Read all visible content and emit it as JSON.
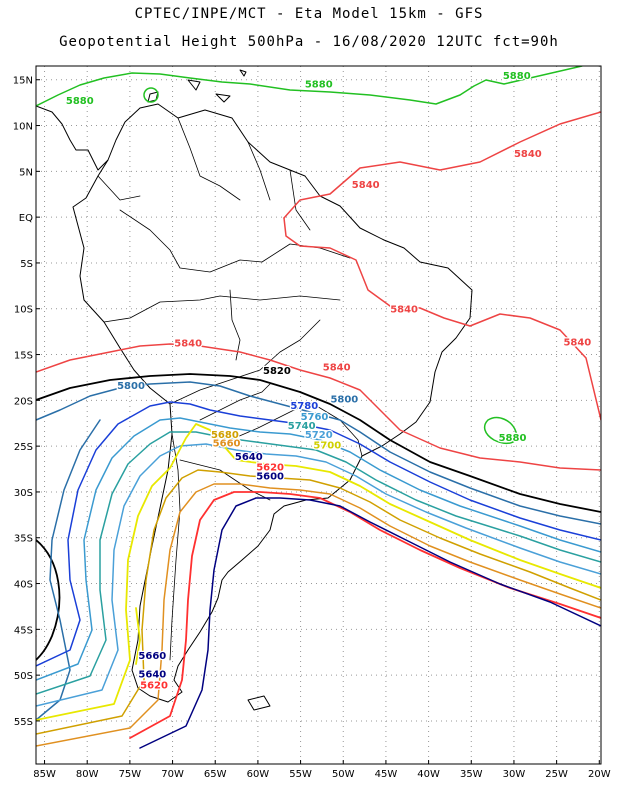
{
  "header": {
    "title_line1": "CPTEC/INPE/MCT -  Eta Model 15km - GFS",
    "title_line2": "Geopotential Height 500hPa - 16/08/2020 12UTC fct=90h"
  },
  "axes": {
    "lat_labels": [
      "15N",
      "10N",
      "5N",
      "EQ",
      "5S",
      "10S",
      "15S",
      "20S",
      "25S",
      "30S",
      "35S",
      "40S",
      "45S",
      "50S",
      "55S"
    ],
    "lat_values": [
      15,
      10,
      5,
      0,
      -5,
      -10,
      -15,
      -20,
      -25,
      -30,
      -35,
      -40,
      -45,
      -50,
      -55
    ],
    "lon_labels": [
      "85W",
      "80W",
      "75W",
      "70W",
      "65W",
      "60W",
      "55W",
      "50W",
      "45W",
      "40W",
      "35W",
      "30W",
      "25W",
      "20W"
    ],
    "lon_values": [
      -85,
      -80,
      -75,
      -70,
      -65,
      -60,
      -55,
      -50,
      -45,
      -40,
      -35,
      -30,
      -25,
      -20
    ],
    "lon_range": [
      -86,
      -19.8
    ],
    "lat_range": [
      -59.7,
      16.5
    ],
    "grid": "dotted"
  },
  "colors": {
    "c5880": "#22c022",
    "c5840": "#ee4444",
    "c5820": "#000000",
    "c5800": "#2a6fa8",
    "c5780": "#1a3fd8",
    "c5760": "#3a9ad0",
    "c5740": "#2aa0a0",
    "c5720": "#4aa0d8",
    "c5700": "#e8e800",
    "c5680": "#d0a000",
    "c5660": "#e09020",
    "c5640": "#ff3030",
    "c5620": "#000080",
    "coast": "#000000"
  },
  "contour_labels": [
    {
      "text": "5880",
      "lon": -82.5,
      "lat": 12.8,
      "color": "#22c022"
    },
    {
      "text": "5880",
      "lon": -54.5,
      "lat": 14.6,
      "color": "#22c022"
    },
    {
      "text": "5880",
      "lon": -31.3,
      "lat": 15.5,
      "color": "#22c022"
    },
    {
      "text": "5880",
      "lon": -31.8,
      "lat": -24.0,
      "color": "#22c022"
    },
    {
      "text": "5840",
      "lon": -30.0,
      "lat": 7.0,
      "color": "#ee4444"
    },
    {
      "text": "5840",
      "lon": -49.0,
      "lat": 3.6,
      "color": "#ee4444"
    },
    {
      "text": "5840",
      "lon": -44.5,
      "lat": -10.0,
      "color": "#ee4444"
    },
    {
      "text": "5840",
      "lon": -69.8,
      "lat": -13.7,
      "color": "#ee4444"
    },
    {
      "text": "5840",
      "lon": -52.4,
      "lat": -16.3,
      "color": "#ee4444"
    },
    {
      "text": "5840",
      "lon": -24.2,
      "lat": -13.6,
      "color": "#ee4444"
    },
    {
      "text": "5820",
      "lon": -59.4,
      "lat": -16.7,
      "color": "#000000"
    },
    {
      "text": "5800",
      "lon": -76.5,
      "lat": -18.3,
      "color": "#2a6fa8"
    },
    {
      "text": "5800",
      "lon": -51.5,
      "lat": -19.8,
      "color": "#2a6fa8"
    },
    {
      "text": "5780",
      "lon": -56.2,
      "lat": -20.5,
      "color": "#1a3fd8"
    },
    {
      "text": "5760",
      "lon": -55.0,
      "lat": -21.7,
      "color": "#3a9ad0"
    },
    {
      "text": "5740",
      "lon": -56.5,
      "lat": -22.7,
      "color": "#2aa0a0"
    },
    {
      "text": "5720",
      "lon": -54.5,
      "lat": -23.7,
      "color": "#4aa0d8"
    },
    {
      "text": "5700",
      "lon": -53.5,
      "lat": -24.8,
      "color": "#d0d000"
    },
    {
      "text": "5680",
      "lon": -65.5,
      "lat": -23.7,
      "color": "#d0a000"
    },
    {
      "text": "5660",
      "lon": -65.3,
      "lat": -24.6,
      "color": "#e09020"
    },
    {
      "text": "5640",
      "lon": -62.7,
      "lat": -26.1,
      "color": "#000080"
    },
    {
      "text": "5620",
      "lon": -60.2,
      "lat": -27.2,
      "color": "#ff3030"
    },
    {
      "text": "5600",
      "lon": -60.2,
      "lat": -28.2,
      "color": "#000080"
    },
    {
      "text": "5660",
      "lon": -74.0,
      "lat": -47.8,
      "color": "#000080"
    },
    {
      "text": "5640",
      "lon": -74.0,
      "lat": -49.8,
      "color": "#000080"
    },
    {
      "text": "5620",
      "lon": -73.8,
      "lat": -51.0,
      "color": "#ff3030"
    }
  ]
}
